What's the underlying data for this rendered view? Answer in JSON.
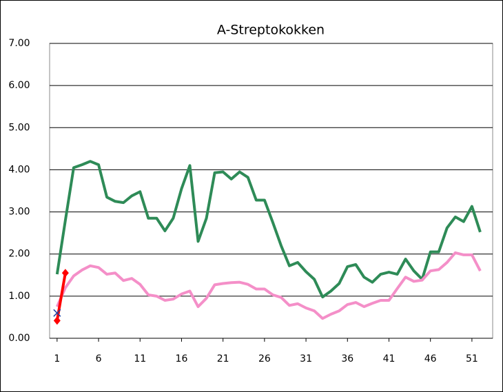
{
  "chart_data": {
    "type": "line",
    "title": "A-Streptokokken",
    "x": [
      1,
      2,
      3,
      4,
      5,
      6,
      7,
      8,
      9,
      10,
      11,
      12,
      13,
      14,
      15,
      16,
      17,
      18,
      19,
      20,
      21,
      22,
      23,
      24,
      25,
      26,
      27,
      28,
      29,
      30,
      31,
      32,
      33,
      34,
      35,
      36,
      37,
      38,
      39,
      40,
      41,
      42,
      43,
      44,
      45,
      46,
      47,
      48,
      49,
      50,
      51,
      52
    ],
    "xlim": [
      0.1,
      53.5
    ],
    "xticks": [
      1,
      6,
      11,
      16,
      21,
      26,
      31,
      36,
      41,
      46,
      51
    ],
    "ylim": [
      0,
      7
    ],
    "yticks": [
      {
        "value": 0,
        "label": "0.00"
      },
      {
        "value": 1,
        "label": "1.00"
      },
      {
        "value": 2,
        "label": "2.00"
      },
      {
        "value": 3,
        "label": "3.00"
      },
      {
        "value": 4,
        "label": "4.00"
      },
      {
        "value": 5,
        "label": "5.00"
      },
      {
        "value": 6,
        "label": "6.00"
      },
      {
        "value": 7,
        "label": "7.00"
      }
    ],
    "grid": true,
    "series": [
      {
        "color": "#2e8b57",
        "marker": "none",
        "values": [
          1.52,
          2.8,
          4.05,
          4.12,
          4.2,
          4.12,
          3.35,
          3.25,
          3.22,
          3.38,
          3.48,
          2.85,
          2.85,
          2.55,
          2.85,
          3.55,
          4.1,
          2.3,
          2.85,
          3.93,
          3.95,
          3.78,
          3.95,
          3.82,
          3.28,
          3.28,
          2.75,
          2.2,
          1.72,
          1.8,
          1.58,
          1.4,
          0.98,
          1.12,
          1.3,
          1.7,
          1.75,
          1.45,
          1.33,
          1.52,
          1.57,
          1.52,
          1.88,
          1.6,
          1.4,
          2.05,
          2.05,
          2.62,
          2.88,
          2.77,
          3.13,
          2.52
        ]
      },
      {
        "color": "#f48fc8",
        "marker": "none",
        "values": [
          0.75,
          1.2,
          1.48,
          1.62,
          1.72,
          1.68,
          1.52,
          1.55,
          1.37,
          1.42,
          1.28,
          1.03,
          1.0,
          0.9,
          0.93,
          1.05,
          1.12,
          0.75,
          0.95,
          1.27,
          1.3,
          1.32,
          1.33,
          1.28,
          1.17,
          1.17,
          1.03,
          0.97,
          0.78,
          0.82,
          0.72,
          0.65,
          0.47,
          0.57,
          0.65,
          0.8,
          0.85,
          0.75,
          0.83,
          0.9,
          0.9,
          1.18,
          1.45,
          1.35,
          1.38,
          1.6,
          1.63,
          1.8,
          2.03,
          1.98,
          1.98,
          1.6
        ]
      },
      {
        "color": "#ff0000",
        "marker": "diamond",
        "values": [
          0.42,
          1.55,
          null,
          null,
          null,
          null,
          null,
          null,
          null,
          null,
          null,
          null,
          null,
          null,
          null,
          null,
          null,
          null,
          null,
          null,
          null,
          null,
          null,
          null,
          null,
          null,
          null,
          null,
          null,
          null,
          null,
          null,
          null,
          null,
          null,
          null,
          null,
          null,
          null,
          null,
          null,
          null,
          null,
          null,
          null,
          null,
          null,
          null,
          null,
          null,
          null,
          null
        ]
      },
      {
        "color": "#1f3fa0",
        "marker": "x",
        "values": [
          0.6,
          null,
          null,
          null,
          null,
          null,
          null,
          null,
          null,
          null,
          null,
          null,
          null,
          null,
          null,
          null,
          null,
          null,
          null,
          null,
          null,
          null,
          null,
          null,
          null,
          null,
          null,
          null,
          null,
          null,
          null,
          null,
          null,
          null,
          null,
          null,
          null,
          null,
          null,
          null,
          null,
          null,
          null,
          null,
          null,
          null,
          null,
          null,
          null,
          null,
          null,
          null
        ]
      }
    ]
  }
}
